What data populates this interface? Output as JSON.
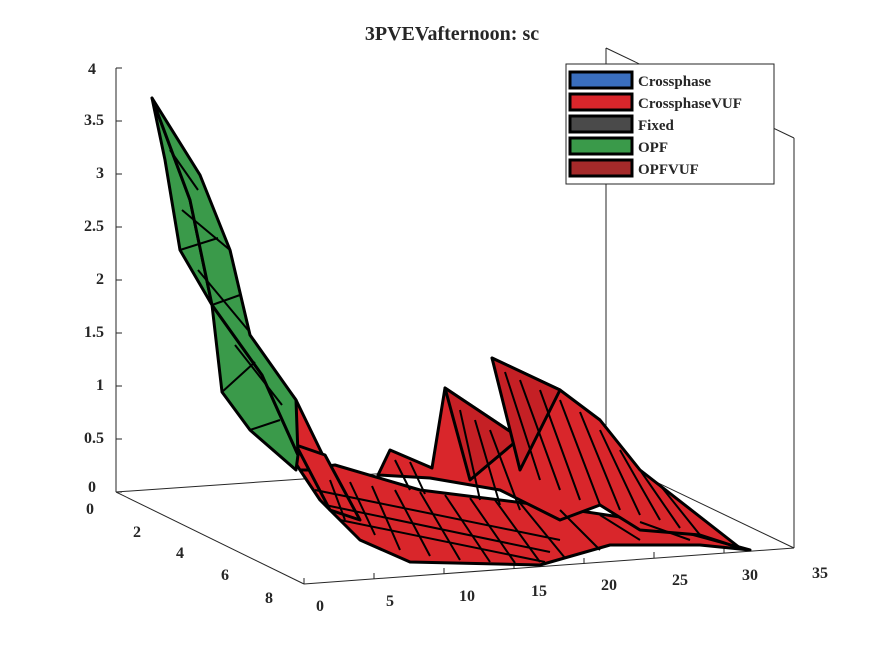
{
  "chart_data": {
    "type": "surface",
    "title": "3PVEVafternoon: sc",
    "xlabel": "",
    "ylabel": "",
    "zlabel": "",
    "x_ticks": [
      "0",
      "5",
      "10",
      "15",
      "20",
      "25",
      "30",
      "35"
    ],
    "y_ticks": [
      "0",
      "2",
      "4",
      "6",
      "8"
    ],
    "z_ticks": [
      "0",
      "0.5",
      "1",
      "1.5",
      "2",
      "2.5",
      "3",
      "3.5",
      "4"
    ],
    "xlim": [
      0,
      35
    ],
    "ylim": [
      0,
      8
    ],
    "zlim": [
      0,
      4
    ],
    "legend_position": "top-right",
    "grid": false,
    "series": [
      {
        "name": "Crossphase",
        "color": "#3a6fbf",
        "visible": false
      },
      {
        "name": "CrossphaseVUF",
        "color": "#d9262b",
        "visible": true,
        "y_rows": [
          0,
          1,
          2,
          3
        ],
        "peaks": [
          {
            "x": 16,
            "y": 3,
            "z": 0.55
          },
          {
            "x": 21,
            "y": 3,
            "z": 0.95
          },
          {
            "x": 22,
            "y": 3,
            "z": 1.1
          }
        ]
      },
      {
        "name": "Fixed",
        "color": "#4a4a4a",
        "visible": false
      },
      {
        "name": "OPF",
        "color": "#3a9a4a",
        "visible": true,
        "x": [
          1,
          2,
          3,
          4,
          5,
          6,
          7
        ],
        "z_front": [
          3.8,
          2.9,
          2.0,
          1.35,
          0.95,
          0.7,
          0.5
        ],
        "z_back": [
          3.8,
          2.6,
          1.7,
          1.05,
          0.75,
          0.55,
          0.35
        ]
      },
      {
        "name": "OPFVUF",
        "color": "#a52a2a",
        "visible": false
      }
    ]
  }
}
